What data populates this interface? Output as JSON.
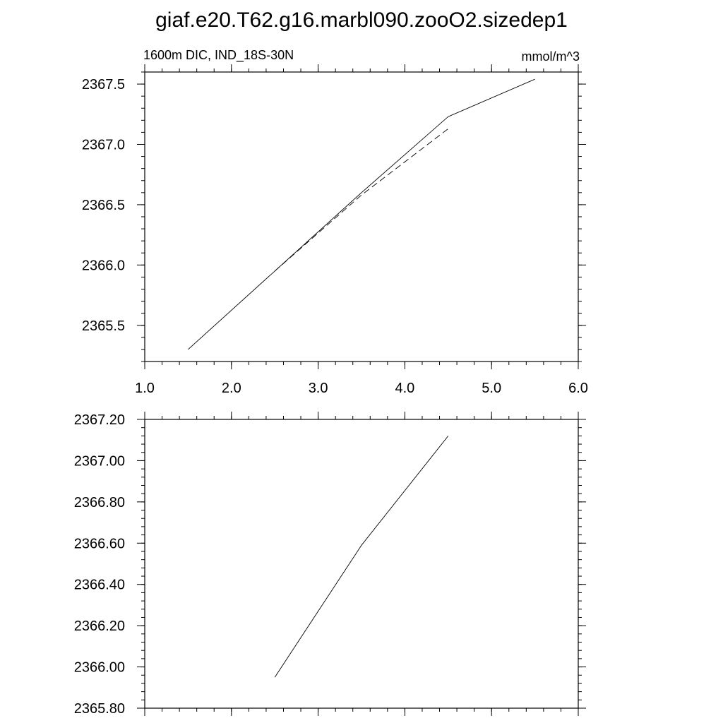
{
  "figure": {
    "title": "giaf.e20.T62.g16.marbl090.zooO2.sizedep1"
  },
  "chart_data": [
    {
      "type": "line",
      "title": "",
      "left_label": "1600m DIC, IND_18S-30N",
      "right_label": "mmol/m^3",
      "xlim": [
        1.0,
        6.0
      ],
      "ylim": [
        2365.2,
        2367.6
      ],
      "xticks": [
        1.0,
        2.0,
        3.0,
        4.0,
        5.0,
        6.0
      ],
      "xtick_labels": [
        "1.0",
        "2.0",
        "3.0",
        "4.0",
        "5.0",
        "6.0"
      ],
      "yticks": [
        2365.5,
        2366.0,
        2366.5,
        2367.0,
        2367.5
      ],
      "ytick_labels": [
        "2365.5",
        "2366.0",
        "2366.5",
        "2367.0",
        "2367.5"
      ],
      "grid": false,
      "series": [
        {
          "style": "solid",
          "x": [
            1.5,
            2.5,
            3.5,
            4.5,
            5.5
          ],
          "y": [
            2365.3,
            2365.95,
            2366.6,
            2367.23,
            2367.54
          ]
        },
        {
          "style": "dashed",
          "x": [
            2.5,
            3.5,
            4.5
          ],
          "y": [
            2365.95,
            2366.58,
            2367.13
          ]
        }
      ]
    },
    {
      "type": "line",
      "title": "",
      "xlim": [
        1.0,
        6.0
      ],
      "ylim": [
        2365.8,
        2367.2
      ],
      "xticks": [
        1.0,
        2.0,
        3.0,
        4.0,
        5.0,
        6.0
      ],
      "xtick_labels": [],
      "yticks": [
        2365.8,
        2366.0,
        2366.2,
        2366.4,
        2366.6,
        2366.8,
        2367.0,
        2367.2
      ],
      "ytick_labels": [
        "2365.80",
        "2366.00",
        "2366.20",
        "2366.40",
        "2366.60",
        "2366.80",
        "2367.00",
        "2367.20"
      ],
      "grid": false,
      "series": [
        {
          "style": "solid",
          "x": [
            2.5,
            3.5,
            4.5
          ],
          "y": [
            2365.95,
            2366.59,
            2367.12
          ]
        }
      ]
    }
  ]
}
